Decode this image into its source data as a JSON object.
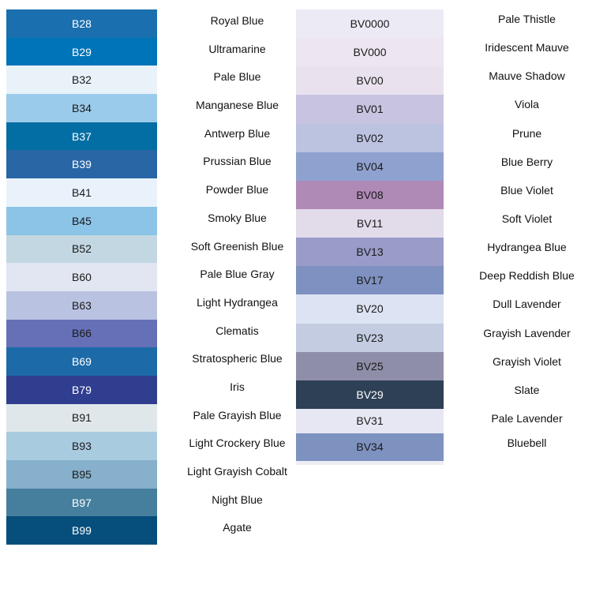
{
  "left": [
    {
      "code": "B28",
      "name": "Royal Blue",
      "color": "#1a6fae",
      "light": true
    },
    {
      "code": "B29",
      "name": "Ultramarine",
      "color": "#0074b9",
      "light": true
    },
    {
      "code": "B32",
      "name": "Pale Blue",
      "color": "#e9f2f9",
      "light": false
    },
    {
      "code": "B34",
      "name": "Manganese Blue",
      "color": "#9bcbea",
      "light": false
    },
    {
      "code": "B37",
      "name": "Antwerp Blue",
      "color": "#036ea3",
      "light": true
    },
    {
      "code": "B39",
      "name": "Prussian Blue",
      "color": "#2966a6",
      "light": true
    },
    {
      "code": "B41",
      "name": "Powder Blue",
      "color": "#e9f2fb",
      "light": false
    },
    {
      "code": "B45",
      "name": "Smoky Blue",
      "color": "#8cc4e8",
      "light": false
    },
    {
      "code": "B52",
      "name": "Soft Greenish Blue",
      "color": "#c2d7e1",
      "light": false
    },
    {
      "code": "B60",
      "name": "Pale Blue Gray",
      "color": "#e1e6f2",
      "light": false
    },
    {
      "code": "B63",
      "name": "Light Hydrangea",
      "color": "#b9c3e1",
      "light": false
    },
    {
      "code": "B66",
      "name": "Clematis",
      "color": "#6670b7",
      "light": false
    },
    {
      "code": "B69",
      "name": "Stratospheric Blue",
      "color": "#1d6aa8",
      "light": true
    },
    {
      "code": "B79",
      "name": "Iris",
      "color": "#2f3e8f",
      "light": true
    },
    {
      "code": "B91",
      "name": "Pale Grayish Blue",
      "color": "#dfe7ea",
      "light": false
    },
    {
      "code": "B93",
      "name": "Light Crockery Blue",
      "color": "#a9cbe0",
      "light": false
    },
    {
      "code": "B95",
      "name": "Light Grayish Cobalt",
      "color": "#86b0cb",
      "light": false
    },
    {
      "code": "B97",
      "name": "Night Blue",
      "color": "#467f9d",
      "light": true
    },
    {
      "code": "B99",
      "name": "Agate",
      "color": "#064e7c",
      "light": true
    }
  ],
  "right": [
    {
      "code": "BV0000",
      "name": "Pale Thistle",
      "color": "#ecebf5",
      "light": false
    },
    {
      "code": "BV000",
      "name": "Iridescent Mauve",
      "color": "#ede5f1",
      "light": false
    },
    {
      "code": "BV00",
      "name": "Mauve Shadow",
      "color": "#e9e2ee",
      "light": false
    },
    {
      "code": "BV01",
      "name": "Viola",
      "color": "#c7c3e0",
      "light": false
    },
    {
      "code": "BV02",
      "name": "Prune",
      "color": "#bcc3e1",
      "light": false
    },
    {
      "code": "BV04",
      "name": "Blue Berry",
      "color": "#8fa1cf",
      "light": false
    },
    {
      "code": "BV08",
      "name": "Blue Violet",
      "color": "#b08ab7",
      "light": false
    },
    {
      "code": "BV11",
      "name": "Soft Violet",
      "color": "#e2dbea",
      "light": false
    },
    {
      "code": "BV13",
      "name": "Hydrangea Blue",
      "color": "#999cc9",
      "light": false
    },
    {
      "code": "BV17",
      "name": "Deep Reddish Blue",
      "color": "#7e91c0",
      "light": false
    },
    {
      "code": "BV20",
      "name": "Dull Lavender",
      "color": "#dce3f2",
      "light": false
    },
    {
      "code": "BV23",
      "name": "Grayish Lavender",
      "color": "#c3cce1",
      "light": false
    },
    {
      "code": "BV25",
      "name": "Grayish Violet",
      "color": "#8f8ea9",
      "light": false
    },
    {
      "code": "BV29",
      "name": "Slate",
      "color": "#2d4055",
      "light": true
    },
    {
      "code": "BV31",
      "name": "Pale Lavender",
      "color": "#e6e7f3",
      "light": false
    },
    {
      "code": "BV34",
      "name": "Bluebell",
      "color": "#7e92c0",
      "light": false
    }
  ]
}
